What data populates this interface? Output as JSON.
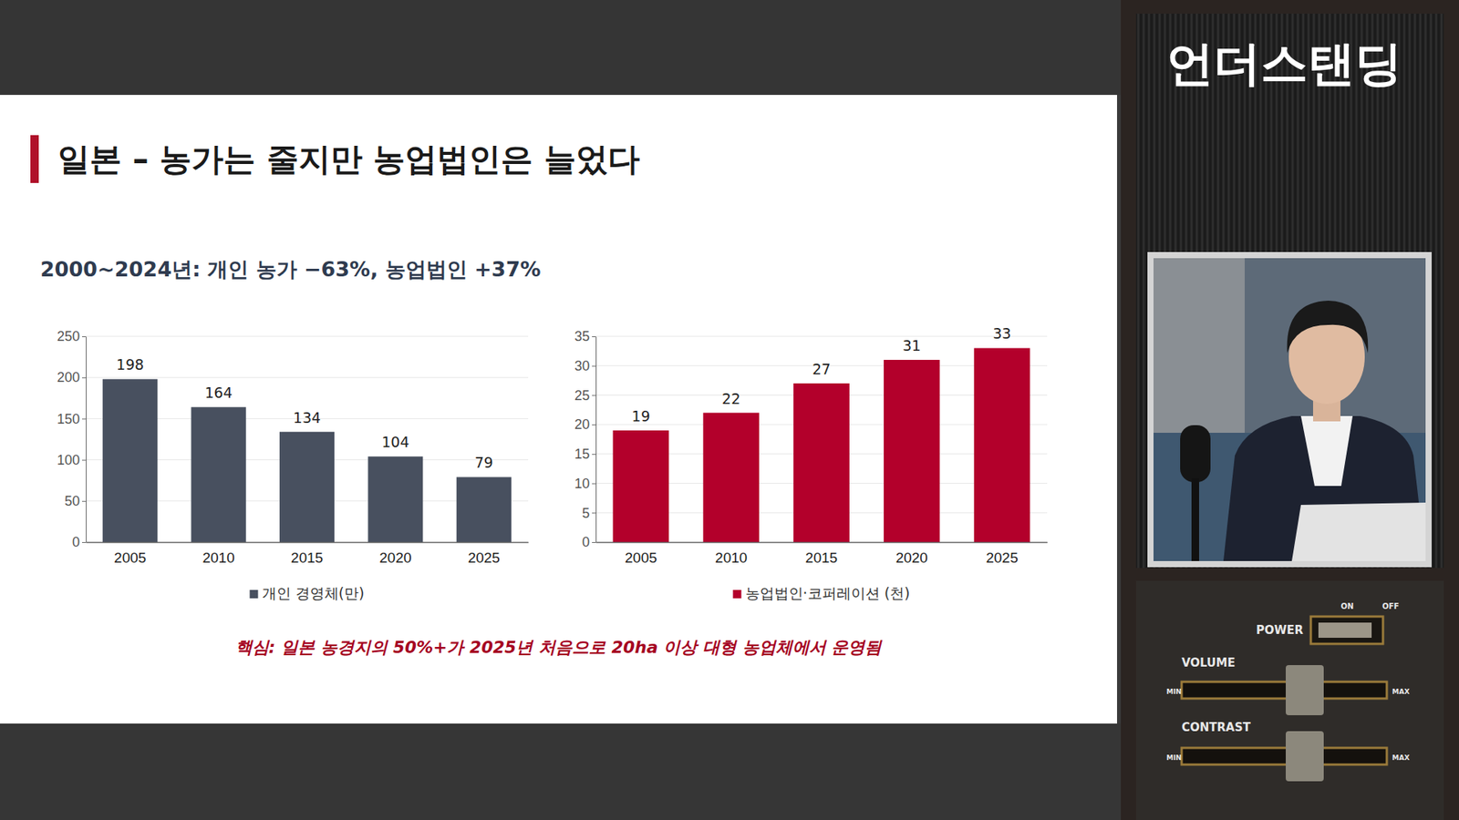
{
  "title": "일본 – 농가는 줄지만 농업법인은 늘었다",
  "subtitle": "2000~2024년: 개인 농가 −63%, 농업법인 +37%",
  "note": "핵심: 일본 농경지의 50%+가 2025년 처음으로 20ha 이상 대형 농업체에서 운영됨",
  "brand": "언더스탠딩",
  "device": {
    "power": "POWER",
    "on": "ON",
    "off": "OFF",
    "volume": "VOLUME",
    "contrast": "CONTRAST",
    "min": "MIN",
    "max": "MAX"
  },
  "chart_data": [
    {
      "type": "bar",
      "categories": [
        "2005",
        "2010",
        "2015",
        "2020",
        "2025"
      ],
      "series": [
        {
          "name": "개인 경영체(만)",
          "color": "#48505f",
          "values": [
            198,
            164,
            134,
            104,
            79
          ]
        }
      ],
      "ylim": [
        0,
        250
      ],
      "yticks": [
        0,
        50,
        100,
        150,
        200,
        250
      ],
      "grid": true,
      "legend": "bottom",
      "data_labels": true
    },
    {
      "type": "bar",
      "categories": [
        "2005",
        "2010",
        "2015",
        "2020",
        "2025"
      ],
      "series": [
        {
          "name": "농업법인·코퍼레이션 (천)",
          "color": "#b3002b",
          "values": [
            19,
            22,
            27,
            31,
            33
          ]
        }
      ],
      "ylim": [
        0,
        35
      ],
      "yticks": [
        0,
        5,
        10,
        15,
        20,
        25,
        30,
        35
      ],
      "grid": true,
      "legend": "bottom",
      "data_labels": true
    }
  ]
}
